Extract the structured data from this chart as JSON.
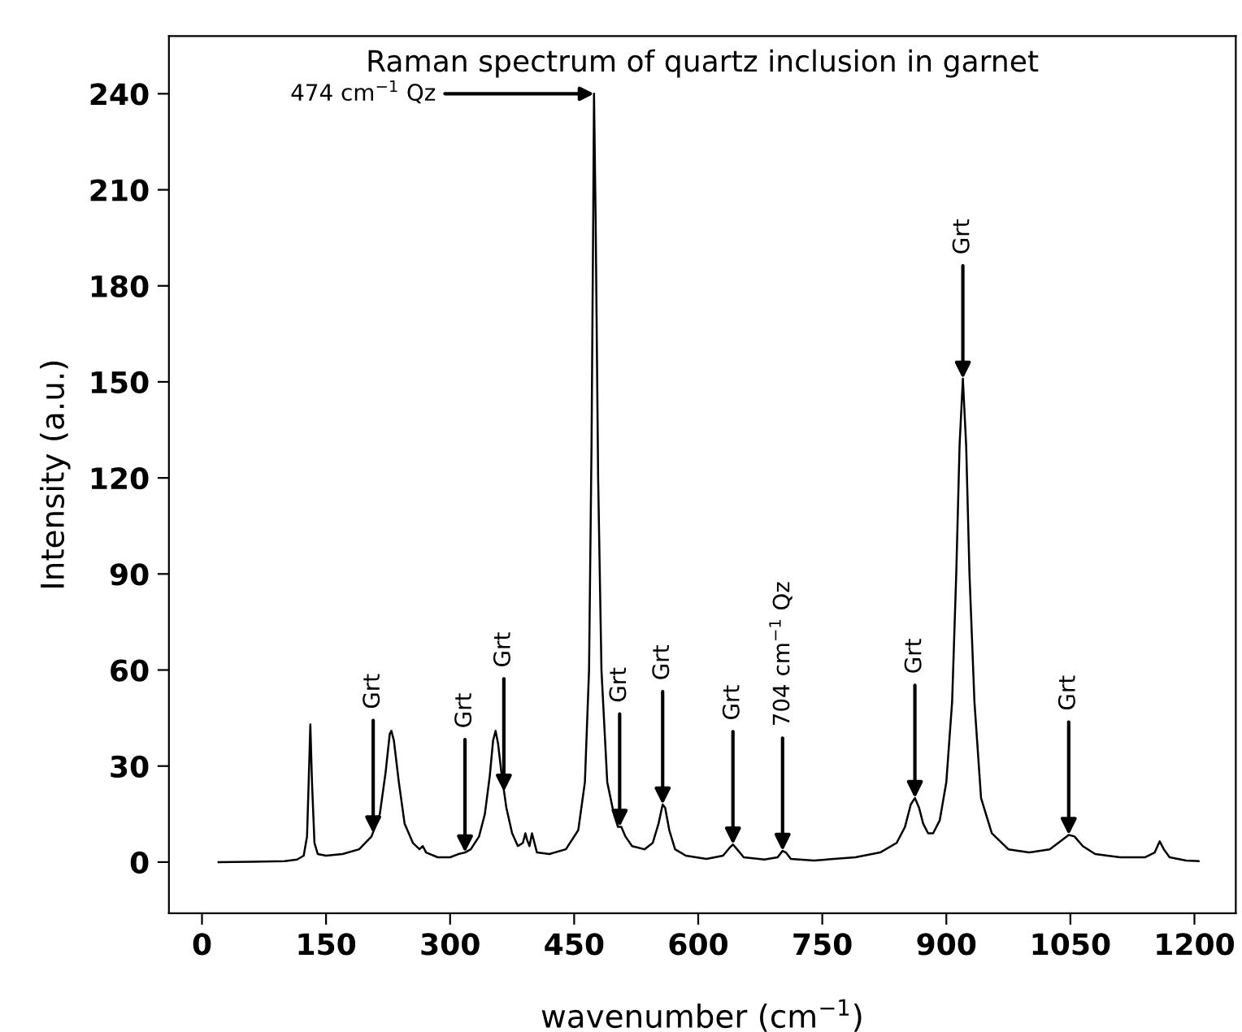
{
  "chart_data": {
    "type": "line",
    "title": "Raman spectrum of quartz inclusion in garnet",
    "xlabel": "wavenumber (cm$^{−1}$)",
    "ylabel": "Intensity (a.u.)",
    "x": [
      20,
      60,
      100,
      115,
      123,
      127,
      129,
      131,
      133,
      136,
      140,
      150,
      170,
      190,
      205,
      215,
      222,
      227,
      229,
      232,
      238,
      245,
      255,
      263,
      267,
      271,
      285,
      300,
      310,
      318,
      325,
      335,
      342,
      348,
      352,
      355,
      358,
      362,
      368,
      375,
      382,
      388,
      391,
      393,
      396,
      399,
      401,
      405,
      420,
      440,
      455,
      463,
      468,
      471,
      473,
      474,
      476,
      479,
      483,
      490,
      498,
      503,
      507,
      512,
      520,
      535,
      545,
      552,
      557,
      560,
      565,
      572,
      585,
      610,
      630,
      638,
      642,
      647,
      655,
      680,
      696,
      702,
      706,
      712,
      740,
      790,
      820,
      840,
      850,
      857,
      862,
      867,
      872,
      878,
      884,
      892,
      900,
      907,
      912,
      916,
      920,
      924,
      928,
      934,
      942,
      955,
      975,
      1000,
      1025,
      1038,
      1048,
      1055,
      1065,
      1080,
      1110,
      1140,
      1152,
      1158,
      1163,
      1170,
      1190,
      1205
    ],
    "series": [
      {
        "color": "#000000",
        "values": [
          0,
          0.1,
          0.3,
          0.8,
          2,
          8,
          25,
          43,
          25,
          6,
          2.5,
          2,
          2.5,
          4,
          8,
          15,
          28,
          40,
          41,
          38,
          25,
          12,
          6,
          4,
          5,
          3,
          1.5,
          1.5,
          2.5,
          3,
          4,
          8,
          15,
          27,
          38,
          41,
          37,
          28,
          17,
          9,
          5,
          6,
          9,
          7,
          5,
          9,
          7,
          3,
          2.5,
          4,
          10,
          25,
          60,
          130,
          200,
          240,
          200,
          120,
          60,
          25,
          15,
          11,
          11,
          8,
          5,
          4,
          6,
          12,
          18,
          17,
          10,
          4,
          2,
          1,
          2,
          4.5,
          5.5,
          4,
          1.5,
          0.8,
          1.5,
          3.5,
          3,
          1,
          0.5,
          1.5,
          3,
          6,
          11,
          18,
          20,
          17,
          12,
          9,
          9,
          13,
          25,
          50,
          90,
          130,
          151,
          130,
          90,
          50,
          20,
          9,
          4,
          3,
          4,
          6.5,
          8.5,
          8,
          5,
          2.5,
          1.5,
          1.5,
          3,
          6.5,
          4,
          1.5,
          0.5,
          0.3
        ]
      }
    ],
    "xlim": [
      -40,
      1250
    ],
    "xticks": [
      0,
      150,
      300,
      450,
      600,
      750,
      900,
      1050,
      1200
    ],
    "ylim": [
      -16,
      258
    ],
    "yticks": [
      0,
      30,
      60,
      90,
      120,
      150,
      180,
      210,
      240
    ],
    "grid": false,
    "legend": false,
    "marker": "none",
    "line_style": "solid",
    "annotations": [
      {
        "text": "474 cm$^{−1}$ Qz",
        "x": 474,
        "y": 240
      },
      {
        "text": "Grt",
        "x": 207,
        "y": 9
      },
      {
        "text": "Grt",
        "x": 318,
        "y": 3
      },
      {
        "text": "Grt",
        "x": 365,
        "y": 22
      },
      {
        "text": "Grt",
        "x": 505,
        "y": 11
      },
      {
        "text": "Grt",
        "x": 557,
        "y": 18
      },
      {
        "text": "Grt",
        "x": 642,
        "y": 5.5
      },
      {
        "text": "704 cm$^{−1}$ Qz",
        "x": 702,
        "y": 3.5
      },
      {
        "text": "Grt",
        "x": 862,
        "y": 20
      },
      {
        "text": "Grt",
        "x": 920,
        "y": 151
      },
      {
        "text": "Grt",
        "x": 1048,
        "y": 8.5
      }
    ]
  }
}
